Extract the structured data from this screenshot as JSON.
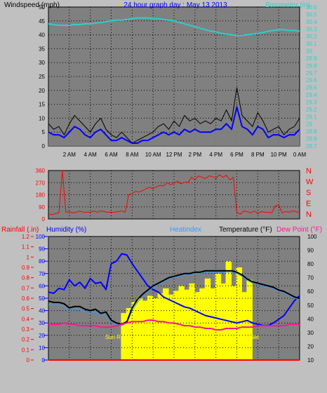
{
  "page_title": "24 hour graph day : May 13 2013",
  "colors": {
    "background": "#c0c0c0",
    "panel_face": "#808080",
    "grid": "#000000",
    "wind_gust": "#000000",
    "wind_avg": "#0000ff",
    "wind_fill": "#808080",
    "barometer": "#33cccc",
    "direction": "#ff0000",
    "direction_letters": "#ff0000",
    "rainfall": "#ff0000",
    "humidity": "#0000ff",
    "heatindex": "#3399ff",
    "temperature": "#000000",
    "dewpoint": "#ff1493",
    "solar": "#ffff00"
  },
  "chart_data": [
    {
      "id": "wind",
      "type": "line",
      "title": "24 hour graph day : May 13 2013",
      "ylabel": "Windspeed (mph)",
      "y2label": "Barometer (in)",
      "ylim": [
        0,
        50
      ],
      "y_ticks": [
        "0",
        "5",
        "10",
        "15",
        "20",
        "25",
        "30",
        "35",
        "40",
        "45",
        "50"
      ],
      "y2lim": [
        28.7,
        30.6
      ],
      "y2_ticks": [
        "28.7",
        "28.8",
        "28.9",
        "29",
        "29.1",
        "29.2",
        "29.3",
        "29.4",
        "29.5",
        "29.6",
        "29.7",
        "29.8",
        "29.9",
        "30",
        "30.1",
        "30.2",
        "30.3",
        "30.4",
        "30.5",
        "30.6"
      ],
      "x_ticks": [
        "2 AM",
        "4 AM",
        "6 AM",
        "8 AM",
        "10 AM",
        "12 PM",
        "2 PM",
        "4 PM",
        "6 PM",
        "8 PM",
        "10 PM",
        "0 AM"
      ],
      "x_hours": [
        0,
        0.5,
        1,
        1.5,
        2,
        2.5,
        3,
        3.5,
        4,
        4.5,
        5,
        5.5,
        6,
        6.5,
        7,
        7.5,
        8,
        8.5,
        9,
        9.5,
        10,
        10.5,
        11,
        11.5,
        12,
        12.5,
        13,
        13.5,
        14,
        14.5,
        15,
        15.5,
        16,
        16.5,
        17,
        17.5,
        18,
        18.5,
        19,
        19.5,
        20,
        20.5,
        21,
        21.5,
        22,
        22.5,
        23,
        23.5,
        24
      ],
      "grid": true,
      "series": [
        {
          "key": "gust",
          "values": [
            8,
            6,
            7,
            4,
            8,
            11,
            9,
            7,
            5,
            8,
            10,
            6,
            4,
            3,
            5,
            3,
            1,
            2,
            3,
            4,
            5,
            7,
            8,
            6,
            9,
            7,
            11,
            9,
            10,
            8,
            9,
            8,
            10,
            9,
            13,
            9,
            21,
            11,
            9,
            7,
            12,
            9,
            5,
            6,
            7,
            4,
            6,
            7,
            10
          ]
        },
        {
          "key": "avg",
          "values": [
            5,
            4,
            4,
            3,
            5,
            7,
            6,
            4,
            3,
            5,
            6,
            4,
            2,
            2,
            3,
            2,
            1,
            1,
            2,
            2,
            3,
            4,
            5,
            4,
            5,
            4,
            6,
            5,
            6,
            5,
            5,
            5,
            6,
            6,
            8,
            6,
            14,
            7,
            6,
            4,
            7,
            6,
            3,
            4,
            4,
            3,
            4,
            4,
            6
          ]
        },
        {
          "key": "barometer",
          "values": [
            30.37,
            30.36,
            30.35,
            30.35,
            30.35,
            30.36,
            30.36,
            30.37,
            30.37,
            30.38,
            30.39,
            30.4,
            30.41,
            30.42,
            30.42,
            30.43,
            30.44,
            30.45,
            30.45,
            30.45,
            30.44,
            30.44,
            30.43,
            30.42,
            30.41,
            30.39,
            30.37,
            30.35,
            30.33,
            30.31,
            30.29,
            30.27,
            30.26,
            30.24,
            30.23,
            30.22,
            30.21,
            30.21,
            30.22,
            30.23,
            30.24,
            30.25,
            30.27,
            30.28,
            30.29,
            30.29,
            30.28,
            30.28,
            30.27
          ]
        }
      ]
    },
    {
      "id": "direction",
      "type": "line",
      "ylim": [
        0,
        360
      ],
      "y_ticks": [
        "0",
        "90",
        "180",
        "270",
        "360"
      ],
      "compass_labels": [
        "N",
        "W",
        "S",
        "E",
        "N"
      ],
      "grid": true,
      "series": [
        {
          "key": "direction",
          "values": [
            40,
            30,
            40,
            45,
            360,
            50,
            55,
            45,
            50,
            60,
            50,
            50,
            50,
            60,
            50,
            60,
            55,
            50,
            50,
            50,
            55,
            60,
            50,
            180,
            190,
            205,
            200,
            210,
            225,
            235,
            225,
            240,
            250,
            245,
            270,
            255,
            265,
            280,
            260,
            275,
            270,
            310,
            290,
            320,
            310,
            300,
            320,
            315,
            300,
            330,
            310,
            325,
            290,
            310,
            50,
            35,
            60,
            55,
            45,
            60,
            40,
            55,
            50,
            50,
            45,
            95,
            105,
            45,
            55,
            50,
            60,
            55,
            45
          ]
        }
      ]
    },
    {
      "id": "temperature",
      "type": "line",
      "legend": [
        "Rainfall (.in)",
        "Humidity (%)",
        "Heatindex",
        "Temperature (°F)",
        "Dew Point (°F)"
      ],
      "rain_ticks": [
        "0",
        "0.1",
        "0.2",
        "0.3",
        "0.4",
        "0.5",
        "0.6",
        "0.7",
        "0.8",
        "0.9",
        "1",
        "1.1",
        "1.2"
      ],
      "humidity_ticks": [
        "0",
        "10",
        "20",
        "30",
        "40",
        "50",
        "60",
        "70",
        "80",
        "90",
        "100"
      ],
      "temp_ticks": [
        "10",
        "20",
        "30",
        "40",
        "50",
        "60",
        "70",
        "80",
        "90",
        "100"
      ],
      "temp_lim": [
        10,
        100
      ],
      "humidity_lim": [
        0,
        100
      ],
      "rain_lim": [
        0,
        1.2
      ],
      "sun_rise_label": "Sun R",
      "sun_set_label": "Set",
      "x_hours": [
        0,
        0.5,
        1,
        1.5,
        2,
        2.5,
        3,
        3.5,
        4,
        4.5,
        5,
        5.5,
        6,
        6.5,
        7,
        7.5,
        8,
        8.5,
        9,
        9.5,
        10,
        10.5,
        11,
        11.5,
        12,
        12.5,
        13,
        13.5,
        14,
        14.5,
        15,
        15.5,
        16,
        16.5,
        17,
        17.5,
        18,
        18.5,
        19,
        19.5,
        20,
        20.5,
        21,
        21.5,
        22,
        22.5,
        23,
        23.5,
        24
      ],
      "grid": true,
      "series": [
        {
          "key": "humidity",
          "values": [
            55,
            54,
            58,
            57,
            65,
            60,
            63,
            58,
            66,
            62,
            63,
            57,
            78,
            80,
            86,
            85,
            78,
            72,
            66,
            60,
            57,
            55,
            51,
            49,
            47,
            45,
            43,
            42,
            40,
            38,
            36,
            35,
            34,
            33,
            32,
            31,
            30,
            31,
            32,
            30,
            29,
            28,
            28,
            30,
            33,
            36,
            42,
            48,
            52
          ]
        },
        {
          "key": "temperature",
          "values": [
            53,
            52,
            52,
            51,
            48,
            49,
            49,
            47,
            46,
            47,
            44,
            45,
            39,
            37,
            36,
            38,
            48,
            54,
            58,
            61,
            64,
            66,
            68,
            70,
            71,
            72,
            73,
            73,
            74,
            74,
            75,
            75,
            75,
            75,
            75,
            75,
            74,
            72,
            69,
            67,
            66,
            65,
            64,
            63,
            61,
            60,
            58,
            56,
            55
          ]
        },
        {
          "key": "heatindex",
          "values": [
            50,
            50,
            50,
            49,
            46,
            47,
            47,
            45,
            44,
            45,
            42,
            43,
            37,
            36,
            35,
            37,
            46,
            52,
            56,
            60,
            63,
            65,
            67,
            69,
            70,
            71,
            72,
            72,
            73,
            73,
            74,
            74,
            74,
            74,
            74,
            74,
            73,
            71,
            68,
            66,
            65,
            64,
            63,
            62,
            60,
            59,
            57,
            55,
            54
          ]
        },
        {
          "key": "dewpoint",
          "values": [
            36,
            36,
            36,
            37,
            36,
            36,
            35,
            35,
            35,
            35,
            34,
            34,
            34,
            35,
            36,
            37,
            38,
            38,
            38,
            39,
            39,
            38,
            38,
            37,
            37,
            36,
            35,
            35,
            34,
            34,
            33,
            33,
            32,
            32,
            33,
            33,
            33,
            34,
            34,
            34,
            35,
            35,
            35,
            35,
            35,
            35,
            36,
            36,
            36
          ]
        },
        {
          "key": "solar",
          "values": [
            0,
            0,
            0,
            0,
            0,
            0,
            0,
            0,
            0,
            0,
            0,
            0,
            0,
            0,
            38,
            42,
            47,
            50,
            48,
            52,
            50,
            54,
            58,
            53,
            56,
            60,
            57,
            62,
            55,
            58,
            66,
            58,
            70,
            62,
            80,
            60,
            75,
            55,
            65,
            0,
            0,
            0,
            0,
            0,
            0,
            0,
            0,
            0,
            0
          ]
        },
        {
          "key": "rainfall",
          "values": [
            0,
            0,
            0,
            0,
            0,
            0,
            0,
            0,
            0,
            0,
            0,
            0,
            0,
            0,
            0,
            0,
            0,
            0,
            0,
            0,
            0,
            0,
            0,
            0,
            0,
            0,
            0,
            0,
            0,
            0,
            0,
            0,
            0,
            0,
            0,
            0,
            0,
            0,
            0,
            0,
            0,
            0,
            0,
            0,
            0,
            0,
            0,
            0,
            0
          ]
        }
      ]
    }
  ]
}
